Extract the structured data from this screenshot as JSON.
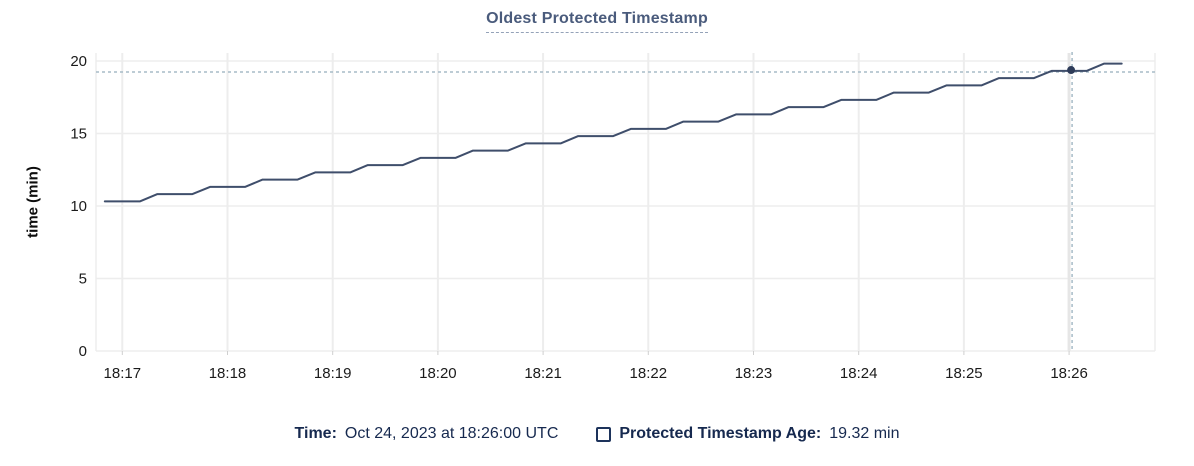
{
  "title": "Oldest Protected Timestamp",
  "tooltip": {
    "time_label": "Time:",
    "time_value": "Oct 24, 2023 at 18:26:00 UTC",
    "series_label": "Protected Timestamp Age:",
    "series_value": "19.32 min"
  },
  "icons": {
    "legend_swatch": "checkbox-outline-icon"
  },
  "colors": {
    "title": "#4a5b7c",
    "title_underline": "#94a2b8",
    "line": "#3f4e6b",
    "marker": "#2e3c59",
    "crosshair": "#a7bbc7",
    "gridline": "#ededed",
    "gridline_emphasized": "#e6e6e6",
    "tick_label": "#1b1b1b",
    "legend_text": "#16294f"
  },
  "chart_data": {
    "type": "line",
    "title": "Oldest Protected Timestamp",
    "xlabel": "",
    "ylabel": "time (min)",
    "ylim": [
      0,
      20
    ],
    "y_ticks": [
      0,
      5,
      10,
      15,
      20
    ],
    "x_domain_seconds": [
      -15,
      589
    ],
    "x_ticks": [
      {
        "t": 0,
        "label": "18:17"
      },
      {
        "t": 60,
        "label": "18:18"
      },
      {
        "t": 120,
        "label": "18:19"
      },
      {
        "t": 180,
        "label": "18:20"
      },
      {
        "t": 240,
        "label": "18:21"
      },
      {
        "t": 300,
        "label": "18:22"
      },
      {
        "t": 360,
        "label": "18:23"
      },
      {
        "t": 420,
        "label": "18:24"
      },
      {
        "t": 480,
        "label": "18:25"
      },
      {
        "t": 540,
        "label": "18:26"
      }
    ],
    "grid": true,
    "legend_position": "bottom",
    "series": [
      {
        "name": "Protected Timestamp Age",
        "unit": "min",
        "points": [
          [
            -10,
            10.32
          ],
          [
            10,
            10.32
          ],
          [
            20,
            10.82
          ],
          [
            40,
            10.82
          ],
          [
            50,
            11.32
          ],
          [
            70,
            11.32
          ],
          [
            80,
            11.82
          ],
          [
            100,
            11.82
          ],
          [
            110,
            12.32
          ],
          [
            130,
            12.32
          ],
          [
            140,
            12.82
          ],
          [
            160,
            12.82
          ],
          [
            170,
            13.32
          ],
          [
            190,
            13.32
          ],
          [
            200,
            13.82
          ],
          [
            220,
            13.82
          ],
          [
            230,
            14.32
          ],
          [
            250,
            14.32
          ],
          [
            260,
            14.82
          ],
          [
            280,
            14.82
          ],
          [
            290,
            15.32
          ],
          [
            310,
            15.32
          ],
          [
            320,
            15.82
          ],
          [
            340,
            15.82
          ],
          [
            350,
            16.32
          ],
          [
            370,
            16.32
          ],
          [
            380,
            16.82
          ],
          [
            400,
            16.82
          ],
          [
            410,
            17.32
          ],
          [
            430,
            17.32
          ],
          [
            440,
            17.82
          ],
          [
            460,
            17.82
          ],
          [
            470,
            18.32
          ],
          [
            490,
            18.32
          ],
          [
            500,
            18.82
          ],
          [
            520,
            18.82
          ],
          [
            530,
            19.32
          ],
          [
            550,
            19.32
          ],
          [
            560,
            19.82
          ],
          [
            570,
            19.82
          ]
        ]
      }
    ],
    "crosshair": {
      "t": 540,
      "value": 19.32,
      "time_text": "18:26:00",
      "value_text": "19.32 min"
    }
  }
}
